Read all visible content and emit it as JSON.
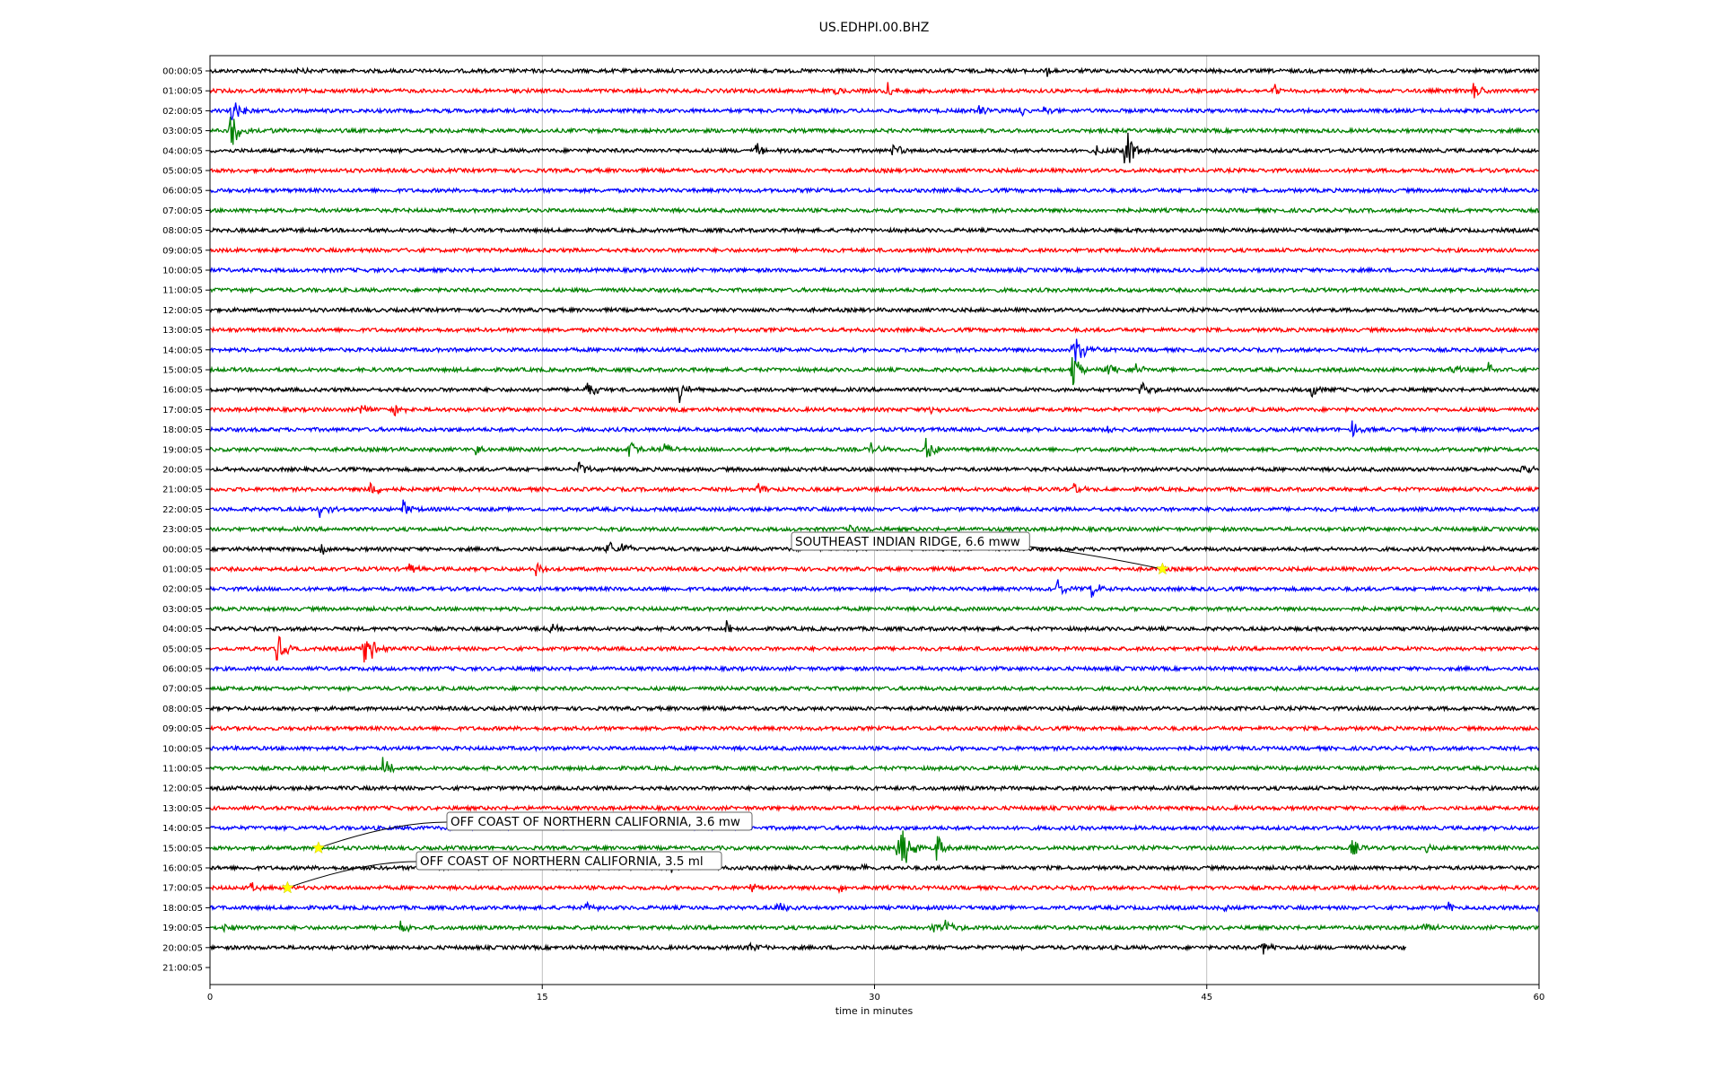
{
  "chart_data": {
    "type": "line",
    "title": "US.EDHPI.00.BHZ",
    "xlabel": "time in minutes",
    "ylabel": "",
    "xlim": [
      0,
      60
    ],
    "x_ticks": [
      0,
      15,
      30,
      45,
      60
    ],
    "grid": "vertical",
    "trace_colors": [
      "#000000",
      "#ff0000",
      "#0000ff",
      "#008000"
    ],
    "row_labels": [
      "00:00:05",
      "01:00:05",
      "02:00:05",
      "03:00:05",
      "04:00:05",
      "05:00:05",
      "06:00:05",
      "07:00:05",
      "08:00:05",
      "09:00:05",
      "10:00:05",
      "11:00:05",
      "12:00:05",
      "13:00:05",
      "14:00:05",
      "15:00:05",
      "16:00:05",
      "17:00:05",
      "18:00:05",
      "19:00:05",
      "20:00:05",
      "21:00:05",
      "22:00:05",
      "23:00:05",
      "00:00:05",
      "01:00:05",
      "02:00:05",
      "03:00:05",
      "04:00:05",
      "05:00:05",
      "06:00:05",
      "07:00:05",
      "08:00:05",
      "09:00:05",
      "10:00:05",
      "11:00:05",
      "12:00:05",
      "13:00:05",
      "14:00:05",
      "15:00:05",
      "16:00:05",
      "17:00:05",
      "18:00:05",
      "19:00:05",
      "20:00:05",
      "21:00:05"
    ],
    "trace_end_minutes": {
      "44": 54,
      "45": 0
    },
    "spikes": [
      {
        "row": 0,
        "t": 3.9,
        "amp": 0.25
      },
      {
        "row": 0,
        "t": 37.8,
        "amp": 0.35
      },
      {
        "row": 1,
        "t": 28.2,
        "amp": 0.3
      },
      {
        "row": 1,
        "t": 30.5,
        "amp": 0.6
      },
      {
        "row": 1,
        "t": 48,
        "amp": 0.35
      },
      {
        "row": 1,
        "t": 57,
        "amp": 0.55
      },
      {
        "row": 2,
        "t": 0.9,
        "amp": 0.9
      },
      {
        "row": 2,
        "t": 34.7,
        "amp": 0.4
      },
      {
        "row": 2,
        "t": 36.5,
        "amp": 0.3
      },
      {
        "row": 2,
        "t": 37.5,
        "amp": 0.3
      },
      {
        "row": 3,
        "t": 0.9,
        "amp": 1.3
      },
      {
        "row": 3,
        "t": 2.5,
        "amp": 0.3
      },
      {
        "row": 4,
        "t": 24.6,
        "amp": 0.5
      },
      {
        "row": 4,
        "t": 30.8,
        "amp": 0.5
      },
      {
        "row": 4,
        "t": 40,
        "amp": 0.35
      },
      {
        "row": 4,
        "t": 41.3,
        "amp": 1.6
      },
      {
        "row": 14,
        "t": 38.9,
        "amp": 1.4
      },
      {
        "row": 14,
        "t": 39.5,
        "amp": 0.5
      },
      {
        "row": 15,
        "t": 38.9,
        "amp": 1.1
      },
      {
        "row": 15,
        "t": 40.5,
        "amp": 0.5
      },
      {
        "row": 15,
        "t": 41.8,
        "amp": 0.4
      },
      {
        "row": 15,
        "t": 56,
        "amp": 0.4
      },
      {
        "row": 15,
        "t": 57.7,
        "amp": 0.5
      },
      {
        "row": 16,
        "t": 17,
        "amp": 0.6
      },
      {
        "row": 16,
        "t": 21.2,
        "amp": 0.6
      },
      {
        "row": 16,
        "t": 42,
        "amp": 0.5
      },
      {
        "row": 16,
        "t": 49.7,
        "amp": 0.5
      },
      {
        "row": 17,
        "t": 6.8,
        "amp": 0.4
      },
      {
        "row": 17,
        "t": 8.3,
        "amp": 0.4
      },
      {
        "row": 17,
        "t": 32.5,
        "amp": 0.3
      },
      {
        "row": 18,
        "t": 51.5,
        "amp": 0.5
      },
      {
        "row": 18,
        "t": 40.5,
        "amp": 0.3
      },
      {
        "row": 19,
        "t": 12,
        "amp": 0.35
      },
      {
        "row": 19,
        "t": 18.9,
        "amp": 0.5
      },
      {
        "row": 19,
        "t": 20.5,
        "amp": 0.4
      },
      {
        "row": 19,
        "t": 29.8,
        "amp": 0.35
      },
      {
        "row": 19,
        "t": 32.3,
        "amp": 0.8
      },
      {
        "row": 20,
        "t": 16.6,
        "amp": 0.5
      },
      {
        "row": 20,
        "t": 59.2,
        "amp": 0.4
      },
      {
        "row": 21,
        "t": 7.2,
        "amp": 0.6
      },
      {
        "row": 21,
        "t": 24.7,
        "amp": 0.4
      },
      {
        "row": 21,
        "t": 39,
        "amp": 0.3
      },
      {
        "row": 22,
        "t": 4.9,
        "amp": 0.55
      },
      {
        "row": 22,
        "t": 8.7,
        "amp": 0.5
      },
      {
        "row": 23,
        "t": 28.9,
        "amp": 0.35
      },
      {
        "row": 24,
        "t": 5,
        "amp": 0.3
      },
      {
        "row": 24,
        "t": 17.9,
        "amp": 0.6
      },
      {
        "row": 24,
        "t": 18.6,
        "amp": 0.4
      },
      {
        "row": 25,
        "t": 9,
        "amp": 0.35
      },
      {
        "row": 25,
        "t": 14.7,
        "amp": 0.4
      },
      {
        "row": 26,
        "t": 38.2,
        "amp": 0.6
      },
      {
        "row": 26,
        "t": 39.8,
        "amp": 0.45
      },
      {
        "row": 28,
        "t": 23.3,
        "amp": 0.4
      },
      {
        "row": 28,
        "t": 15.3,
        "amp": 0.3
      },
      {
        "row": 29,
        "t": 3,
        "amp": 0.9
      },
      {
        "row": 29,
        "t": 6.9,
        "amp": 1.0
      },
      {
        "row": 29,
        "t": 7.3,
        "amp": 0.7
      },
      {
        "row": 35,
        "t": 7.8,
        "amp": 0.5
      },
      {
        "row": 39,
        "t": 31.2,
        "amp": 1.7
      },
      {
        "row": 39,
        "t": 32.8,
        "amp": 0.9
      },
      {
        "row": 39,
        "t": 31.0,
        "amp": 0.6
      },
      {
        "row": 39,
        "t": 51.5,
        "amp": 0.5
      },
      {
        "row": 39,
        "t": 54.8,
        "amp": 0.3
      },
      {
        "row": 40,
        "t": 29.4,
        "amp": 0.3
      },
      {
        "row": 40,
        "t": 20.7,
        "amp": 0.35
      },
      {
        "row": 41,
        "t": 1.8,
        "amp": 0.3
      },
      {
        "row": 41,
        "t": 24.4,
        "amp": 0.3
      },
      {
        "row": 41,
        "t": 28.4,
        "amp": 0.25
      },
      {
        "row": 42,
        "t": 17,
        "amp": 0.3
      },
      {
        "row": 42,
        "t": 25.6,
        "amp": 0.45
      },
      {
        "row": 42,
        "t": 45.7,
        "amp": 0.3
      },
      {
        "row": 42,
        "t": 55.9,
        "amp": 0.3
      },
      {
        "row": 42,
        "t": 59.9,
        "amp": 0.4
      },
      {
        "row": 43,
        "t": 0.5,
        "amp": 0.35
      },
      {
        "row": 43,
        "t": 8.6,
        "amp": 0.3
      },
      {
        "row": 43,
        "t": 32.5,
        "amp": 0.4
      },
      {
        "row": 43,
        "t": 33.2,
        "amp": 0.45
      },
      {
        "row": 43,
        "t": 54.8,
        "amp": 0.4
      },
      {
        "row": 44,
        "t": 24.3,
        "amp": 0.3
      },
      {
        "row": 44,
        "t": 47.5,
        "amp": 0.5
      }
    ],
    "annotations": [
      {
        "text": "SOUTHEAST INDIAN RIDGE, 6.6 mww",
        "row": 25,
        "t": 43.0
      },
      {
        "text": "OFF COAST OF NORTHERN CALIFORNIA, 3.6 mw",
        "row": 39,
        "t": 4.9
      },
      {
        "text": "OFF COAST OF NORTHERN CALIFORNIA, 3.5 ml",
        "row": 41,
        "t": 3.5
      }
    ],
    "marker_color": "#ffff00"
  }
}
